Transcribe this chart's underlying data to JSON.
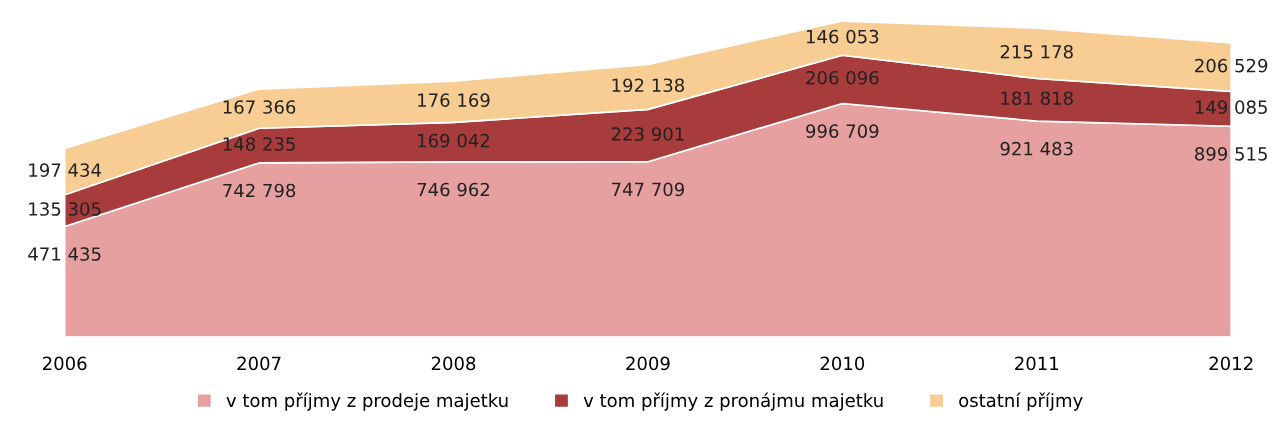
{
  "chart_data": {
    "type": "area",
    "stacked": true,
    "data_labels": true,
    "legend": "bottom",
    "grid": false,
    "tick_labels": "x",
    "categories": [
      "2006",
      "2007",
      "2008",
      "2009",
      "2010",
      "2011",
      "2012"
    ],
    "series": [
      {
        "name": "v tom příjmy z prodeje majetku",
        "color": "#e6a0a0",
        "values": [
          471435,
          742798,
          746962,
          747709,
          996709,
          921483,
          899515
        ]
      },
      {
        "name": "v tom příjmy z pronájmu majetku",
        "color": "#a83c3c",
        "values": [
          135305,
          148235,
          169042,
          223901,
          206096,
          181818,
          149085
        ]
      },
      {
        "name": "ostatní příjmy",
        "color": "#f8cd94",
        "values": [
          197434,
          167366,
          176169,
          192138,
          146053,
          215178,
          206529
        ]
      }
    ]
  }
}
